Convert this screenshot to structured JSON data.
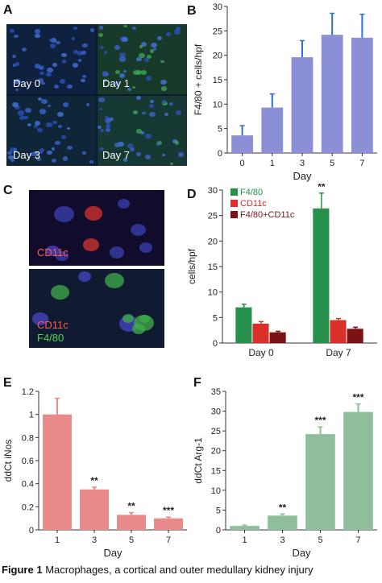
{
  "panels": {
    "A": {
      "letter": "A",
      "tiles": [
        "Day 0",
        "Day 1",
        "Day 3",
        "Day 7"
      ]
    },
    "C": {
      "letter": "C",
      "top_label": "CD11c",
      "bottom_labels": [
        "CD11c",
        "F4/80"
      ]
    }
  },
  "caption": {
    "prefix": "Figure 1",
    "text": "Macrophages, a cortical and outer medullary kidney injury"
  },
  "colors": {
    "panel_b": "#8b8fd6",
    "panel_b_err": "#2f6fd0",
    "f480": "#27904a",
    "cd11c": "#d9302a",
    "double": "#7a1414",
    "panel_e": "#e98a8a",
    "panel_f": "#8fbf9a",
    "axis": "#333333"
  },
  "chart_data": [
    {
      "id": "B",
      "letter": "B",
      "type": "bar",
      "categories": [
        "0",
        "1",
        "3",
        "5",
        "7"
      ],
      "values": [
        3.6,
        9.3,
        19.6,
        24.2,
        23.6
      ],
      "errors": [
        2.0,
        2.8,
        3.4,
        4.4,
        4.8
      ],
      "xlabel": "Day",
      "ylabel": "F4/80 + cells/hpf",
      "ylim": [
        0,
        30
      ],
      "yticks": [
        "0",
        "5",
        "10",
        "15",
        "20",
        "25",
        "30"
      ],
      "ytick_values": [
        0,
        5,
        10,
        15,
        20,
        25,
        30
      ],
      "color": "#8b8fd6",
      "error_color": "#2f6fd0",
      "significance": [
        "",
        "",
        "",
        "",
        ""
      ]
    },
    {
      "id": "D",
      "letter": "D",
      "type": "bar",
      "categories": [
        "Day 0",
        "Day 7"
      ],
      "series": [
        {
          "name": "F4/80",
          "values": [
            7.0,
            26.4
          ],
          "errors": [
            0.6,
            3.0
          ],
          "color": "#27904a",
          "significance": [
            "",
            "**"
          ]
        },
        {
          "name": "CD11c",
          "values": [
            3.8,
            4.5
          ],
          "errors": [
            0.4,
            0.3
          ],
          "color": "#d9302a",
          "significance": [
            "",
            ""
          ]
        },
        {
          "name": "F4/80+CD11c",
          "values": [
            2.1,
            2.8
          ],
          "errors": [
            0.2,
            0.3
          ],
          "color": "#7a1414",
          "significance": [
            "",
            ""
          ]
        }
      ],
      "ylabel": "cells/hpf",
      "xlabel": "",
      "ylim": [
        0,
        30
      ],
      "yticks": [
        "0",
        "5",
        "10",
        "15",
        "20",
        "25",
        "30"
      ],
      "ytick_values": [
        0,
        5,
        10,
        15,
        20,
        25,
        30
      ],
      "legend": "top-left"
    },
    {
      "id": "E",
      "letter": "E",
      "type": "bar",
      "categories": [
        "1",
        "3",
        "5",
        "7"
      ],
      "values": [
        1.0,
        0.35,
        0.13,
        0.1
      ],
      "errors": [
        0.14,
        0.02,
        0.02,
        0.01
      ],
      "xlabel": "Day",
      "ylabel": "ddCt iNos",
      "ylim": [
        0,
        1.2
      ],
      "yticks": [
        "0",
        "0.2",
        "0.4",
        "0.6",
        "0.8",
        "1",
        "1.2"
      ],
      "ytick_values": [
        0,
        0.2,
        0.4,
        0.6,
        0.8,
        1.0,
        1.2
      ],
      "color": "#e98a8a",
      "error_color": "#e98a8a",
      "significance": [
        "",
        "**",
        "**",
        "***"
      ]
    },
    {
      "id": "F",
      "letter": "F",
      "type": "bar",
      "categories": [
        "1",
        "3",
        "5",
        "7"
      ],
      "values": [
        1.0,
        3.6,
        24.2,
        29.8
      ],
      "errors": [
        0.2,
        0.4,
        1.8,
        2.0
      ],
      "xlabel": "Day",
      "ylabel": "ddCt Arg-1",
      "ylim": [
        0,
        35
      ],
      "yticks": [
        "0",
        "5",
        "10",
        "15",
        "20",
        "25",
        "30",
        "35"
      ],
      "ytick_values": [
        0,
        5,
        10,
        15,
        20,
        25,
        30,
        35
      ],
      "color": "#8fbf9a",
      "error_color": "#8fbf9a",
      "significance": [
        "",
        "**",
        "***",
        "***"
      ]
    }
  ]
}
